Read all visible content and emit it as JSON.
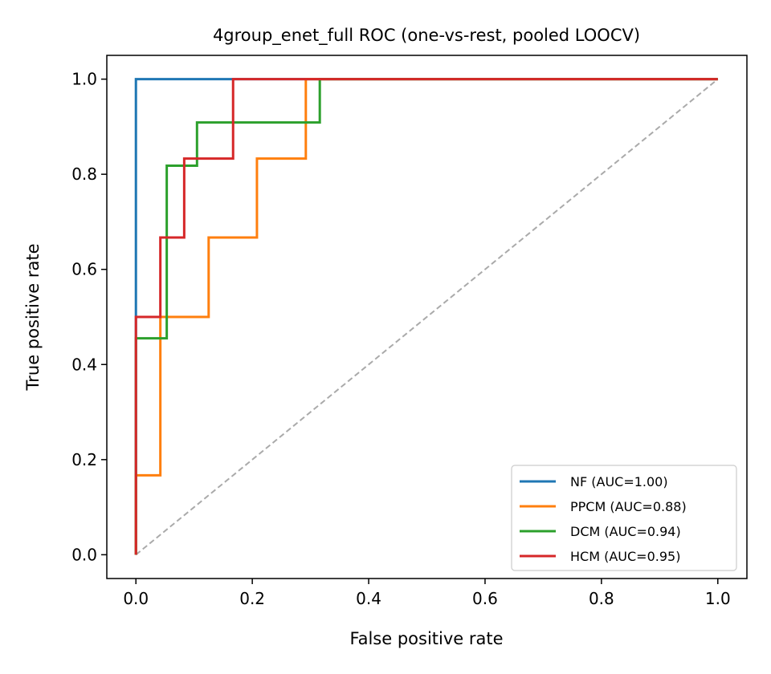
{
  "chart_data": {
    "type": "line",
    "title": "4group_enet_full ROC (one-vs-rest, pooled LOOCV)",
    "xlabel": "False positive rate",
    "ylabel": "True positive rate",
    "xlim": [
      -0.05,
      1.05
    ],
    "ylim": [
      -0.05,
      1.05
    ],
    "xticks": [
      0.0,
      0.2,
      0.4,
      0.6,
      0.8,
      1.0
    ],
    "yticks": [
      0.0,
      0.2,
      0.4,
      0.6,
      0.8,
      1.0
    ],
    "xtick_labels": [
      "0.0",
      "0.2",
      "0.4",
      "0.6",
      "0.8",
      "1.0"
    ],
    "ytick_labels": [
      "0.0",
      "0.2",
      "0.4",
      "0.6",
      "0.8",
      "1.0"
    ],
    "grid": false,
    "legend_position": "lower-right",
    "diagonal": {
      "x": [
        0,
        1
      ],
      "y": [
        0,
        1
      ],
      "color": "#aaaaaa",
      "style": "dashed"
    },
    "series": [
      {
        "name": "NF (AUC=1.00)",
        "color": "#1f77b4",
        "x": [
          0,
          0,
          0,
          1
        ],
        "y": [
          0,
          0.45,
          1.0,
          1.0
        ]
      },
      {
        "name": "PPCM (AUC=0.88)",
        "color": "#ff7f0e",
        "x": [
          0,
          0,
          0.042,
          0.042,
          0.125,
          0.125,
          0.208,
          0.208,
          0.292,
          0.292,
          1.0
        ],
        "y": [
          0,
          0.167,
          0.167,
          0.5,
          0.5,
          0.667,
          0.667,
          0.833,
          0.833,
          1.0,
          1.0
        ]
      },
      {
        "name": "DCM (AUC=0.94)",
        "color": "#2ca02c",
        "x": [
          0,
          0,
          0.053,
          0.053,
          0.105,
          0.105,
          0.316,
          0.316,
          1.0
        ],
        "y": [
          0,
          0.455,
          0.455,
          0.818,
          0.818,
          0.909,
          0.909,
          1.0,
          1.0
        ]
      },
      {
        "name": "HCM (AUC=0.95)",
        "color": "#d62728",
        "x": [
          0,
          0,
          0.042,
          0.042,
          0.083,
          0.083,
          0.167,
          0.167,
          1.0
        ],
        "y": [
          0,
          0.5,
          0.5,
          0.667,
          0.667,
          0.833,
          0.833,
          1.0,
          1.0
        ]
      }
    ]
  }
}
